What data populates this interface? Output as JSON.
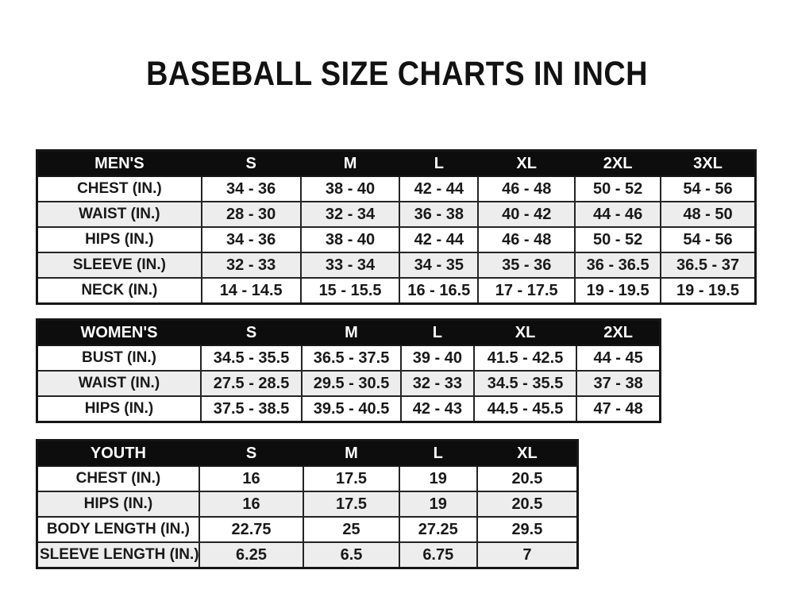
{
  "page": {
    "title": "BASEBALL SIZE CHARTS IN INCH"
  },
  "colors": {
    "page_bg": "#ffffff",
    "header_bg": "#0d0d0d",
    "header_text": "#ffffff",
    "row_alt_bg": "#ededed",
    "border": "#242424",
    "text": "#191919"
  },
  "tables": [
    {
      "id": "mens",
      "header": [
        "MEN'S",
        "S",
        "M",
        "L",
        "XL",
        "2XL",
        "3XL"
      ],
      "rows": [
        [
          "CHEST (IN.)",
          "34 - 36",
          "38 - 40",
          "42 - 44",
          "46 - 48",
          "50 - 52",
          "54 - 56"
        ],
        [
          "WAIST (IN.)",
          "28 - 30",
          "32 - 34",
          "36 - 38",
          "40 - 42",
          "44 - 46",
          "48 - 50"
        ],
        [
          "HIPS (IN.)",
          "34 - 36",
          "38 - 40",
          "42 - 44",
          "46 - 48",
          "50 - 52",
          "54 - 56"
        ],
        [
          "SLEEVE (IN.)",
          "32 - 33",
          "33 - 34",
          "34 - 35",
          "35 - 36",
          "36 - 36.5",
          "36.5 - 37"
        ],
        [
          "NECK (IN.)",
          "14 - 14.5",
          "15 - 15.5",
          "16 - 16.5",
          "17 - 17.5",
          "19 - 19.5",
          "19 - 19.5"
        ]
      ]
    },
    {
      "id": "womens",
      "header": [
        "WOMEN'S",
        "S",
        "M",
        "L",
        "XL",
        "2XL"
      ],
      "rows": [
        [
          "BUST (IN.)",
          "34.5 - 35.5",
          "36.5 - 37.5",
          "39 - 40",
          "41.5 - 42.5",
          "44 - 45"
        ],
        [
          "WAIST (IN.)",
          "27.5 - 28.5",
          "29.5 - 30.5",
          "32 - 33",
          "34.5 - 35.5",
          "37 - 38"
        ],
        [
          "HIPS (IN.)",
          "37.5 - 38.5",
          "39.5 - 40.5",
          "42 - 43",
          "44.5 - 45.5",
          "47 - 48"
        ]
      ]
    },
    {
      "id": "youth",
      "header": [
        "YOUTH",
        "S",
        "M",
        "L",
        "XL"
      ],
      "rows": [
        [
          "CHEST (IN.)",
          "16",
          "17.5",
          "19",
          "20.5"
        ],
        [
          "HIPS (IN.)",
          "16",
          "17.5",
          "19",
          "20.5"
        ],
        [
          "BODY LENGTH (IN.)",
          "22.75",
          "25",
          "27.25",
          "29.5"
        ],
        [
          "SLEEVE LENGTH (IN.)",
          "6.25",
          "6.5",
          "6.75",
          "7"
        ]
      ]
    }
  ]
}
